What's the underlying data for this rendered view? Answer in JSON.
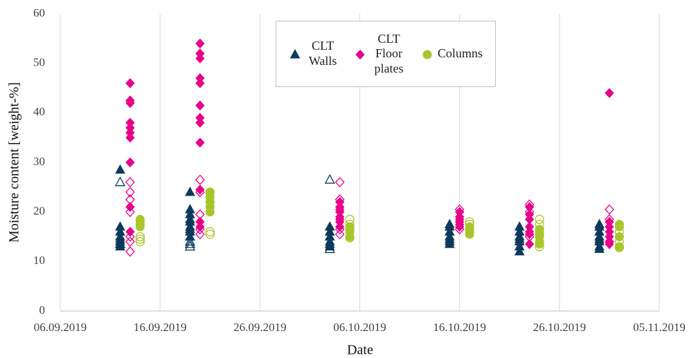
{
  "chart_data": {
    "type": "scatter",
    "x_label": "Date",
    "y_label": "Moisture content [weight-%]",
    "xlim": [
      "06.09.2019",
      "05.11.2019"
    ],
    "xticks": [
      "06.09.2019",
      "16.09.2019",
      "26.09.2019",
      "06.10.2019",
      "16.10.2019",
      "26.10.2019",
      "05.11.2019"
    ],
    "ylim": [
      0,
      60
    ],
    "yticks": [
      0,
      10,
      20,
      30,
      40,
      50,
      60
    ],
    "grid": "x",
    "legend": "top",
    "series": [
      {
        "name": "CLT Walls",
        "color": "#0d3a5c",
        "marker": "triangle",
        "x": [
          "12.09.2019",
          "12.09.2019",
          "12.09.2019",
          "12.09.2019",
          "12.09.2019",
          "12.09.2019",
          "12.09.2019",
          "12.09.2019",
          "12.09.2019",
          "12.09.2019",
          "19.09.2019",
          "19.09.2019",
          "19.09.2019",
          "19.09.2019",
          "19.09.2019",
          "19.09.2019",
          "19.09.2019",
          "19.09.2019",
          "19.09.2019",
          "19.09.2019",
          "19.09.2019",
          "19.09.2019",
          "03.10.2019",
          "03.10.2019",
          "03.10.2019",
          "03.10.2019",
          "03.10.2019",
          "03.10.2019",
          "03.10.2019",
          "03.10.2019",
          "15.10.2019",
          "15.10.2019",
          "15.10.2019",
          "15.10.2019",
          "15.10.2019",
          "15.10.2019",
          "15.10.2019",
          "22.10.2019",
          "22.10.2019",
          "22.10.2019",
          "22.10.2019",
          "22.10.2019",
          "22.10.2019",
          "22.10.2019",
          "30.10.2019",
          "30.10.2019",
          "30.10.2019",
          "30.10.2019",
          "30.10.2019",
          "30.10.2019",
          "30.10.2019",
          "30.10.2019"
        ],
        "values": [
          28.5,
          17,
          16,
          15,
          14.5,
          14,
          13.5,
          13,
          26,
          13.5,
          24,
          20.5,
          19.5,
          18.5,
          18,
          17,
          16.5,
          16,
          15,
          14,
          13.5,
          13,
          17,
          16,
          15,
          14,
          13.5,
          13,
          26.5,
          12.5,
          17.5,
          17,
          16,
          15,
          14.5,
          14,
          13.5,
          17,
          16,
          15,
          14.5,
          14,
          13,
          12,
          17.5,
          17,
          16,
          15,
          14.5,
          14,
          13,
          12.5
        ],
        "filled": [
          true,
          true,
          true,
          true,
          true,
          true,
          true,
          true,
          false,
          false,
          true,
          true,
          true,
          true,
          true,
          true,
          true,
          true,
          true,
          false,
          false,
          false,
          true,
          true,
          true,
          true,
          true,
          true,
          false,
          false,
          true,
          true,
          true,
          true,
          true,
          true,
          true,
          true,
          true,
          true,
          true,
          true,
          true,
          true,
          true,
          true,
          true,
          true,
          true,
          true,
          true,
          true
        ]
      },
      {
        "name": "CLT Floor plates",
        "color": "#e6008a",
        "marker": "diamond",
        "x": [
          "13.09.2019",
          "13.09.2019",
          "13.09.2019",
          "13.09.2019",
          "13.09.2019",
          "13.09.2019",
          "13.09.2019",
          "13.09.2019",
          "13.09.2019",
          "13.09.2019",
          "13.09.2019",
          "13.09.2019",
          "13.09.2019",
          "13.09.2019",
          "13.09.2019",
          "13.09.2019",
          "13.09.2019",
          "20.09.2019",
          "20.09.2019",
          "20.09.2019",
          "20.09.2019",
          "20.09.2019",
          "20.09.2019",
          "20.09.2019",
          "20.09.2019",
          "20.09.2019",
          "20.09.2019",
          "20.09.2019",
          "20.09.2019",
          "20.09.2019",
          "20.09.2019",
          "20.09.2019",
          "20.09.2019",
          "20.09.2019",
          "04.10.2019",
          "04.10.2019",
          "04.10.2019",
          "04.10.2019",
          "04.10.2019",
          "04.10.2019",
          "04.10.2019",
          "04.10.2019",
          "04.10.2019",
          "04.10.2019",
          "04.10.2019",
          "04.10.2019",
          "16.10.2019",
          "16.10.2019",
          "16.10.2019",
          "16.10.2019",
          "16.10.2019",
          "16.10.2019",
          "16.10.2019",
          "16.10.2019",
          "23.10.2019",
          "23.10.2019",
          "23.10.2019",
          "23.10.2019",
          "23.10.2019",
          "23.10.2019",
          "23.10.2019",
          "23.10.2019",
          "23.10.2019",
          "23.10.2019",
          "31.10.2019",
          "31.10.2019",
          "31.10.2019",
          "31.10.2019",
          "31.10.2019",
          "31.10.2019",
          "31.10.2019",
          "31.10.2019",
          "31.10.2019",
          "31.10.2019"
        ],
        "values": [
          46,
          42.5,
          42,
          38,
          37,
          36,
          35,
          30,
          21,
          16,
          26,
          24,
          22.5,
          20,
          15,
          14,
          12,
          54,
          52,
          51,
          47,
          46,
          41.5,
          39,
          38,
          34,
          24.5,
          18,
          17,
          26.5,
          24,
          19.5,
          16.5,
          15.5,
          22,
          21,
          20.5,
          20,
          19,
          18.5,
          18,
          17,
          26,
          22.5,
          16.5,
          15.5,
          20,
          19,
          18.5,
          18,
          17.5,
          17,
          20.5,
          16.5,
          21,
          19.5,
          18.5,
          17,
          16,
          15.5,
          13.5,
          21.5,
          20,
          15,
          44,
          18,
          17,
          16,
          15,
          14,
          13.5,
          20.5,
          18.5,
          14
        ],
        "filled": [
          true,
          true,
          true,
          true,
          true,
          true,
          true,
          true,
          true,
          true,
          false,
          false,
          false,
          false,
          false,
          false,
          false,
          true,
          true,
          true,
          true,
          true,
          true,
          true,
          true,
          true,
          true,
          true,
          true,
          false,
          false,
          false,
          false,
          false,
          true,
          true,
          true,
          true,
          true,
          true,
          true,
          true,
          false,
          false,
          false,
          false,
          true,
          true,
          true,
          true,
          true,
          true,
          false,
          false,
          true,
          true,
          true,
          true,
          true,
          true,
          true,
          false,
          false,
          false,
          true,
          true,
          true,
          true,
          true,
          true,
          true,
          false,
          false,
          false
        ]
      },
      {
        "name": "Columns",
        "color": "#a8c62c",
        "marker": "circle",
        "x": [
          "14.09.2019",
          "14.09.2019",
          "14.09.2019",
          "14.09.2019",
          "14.09.2019",
          "14.09.2019",
          "14.09.2019",
          "21.09.2019",
          "21.09.2019",
          "21.09.2019",
          "21.09.2019",
          "21.09.2019",
          "21.09.2019",
          "21.09.2019",
          "21.09.2019",
          "05.10.2019",
          "05.10.2019",
          "05.10.2019",
          "05.10.2019",
          "05.10.2019",
          "05.10.2019",
          "05.10.2019",
          "17.10.2019",
          "17.10.2019",
          "17.10.2019",
          "17.10.2019",
          "17.10.2019",
          "17.10.2019",
          "24.10.2019",
          "24.10.2019",
          "24.10.2019",
          "24.10.2019",
          "24.10.2019",
          "24.10.2019",
          "24.10.2019",
          "24.10.2019",
          "24.10.2019",
          "01.11.2019",
          "01.11.2019",
          "01.11.2019",
          "01.11.2019",
          "01.11.2019",
          "01.11.2019",
          "01.11.2019"
        ],
        "values": [
          18.5,
          18,
          17.5,
          17,
          15,
          14.5,
          14,
          24,
          23,
          22,
          21,
          20,
          24,
          16,
          15.5,
          17,
          16.5,
          16,
          15,
          18.5,
          17.5,
          14.8,
          17,
          16.5,
          16,
          15.5,
          18,
          17.5,
          16.5,
          16,
          15,
          14,
          13.5,
          18.5,
          17.5,
          15.5,
          13,
          17.5,
          17,
          15,
          13,
          16,
          14,
          12.8
        ],
        "filled": [
          true,
          true,
          true,
          true,
          false,
          false,
          false,
          true,
          true,
          true,
          true,
          true,
          false,
          false,
          false,
          true,
          true,
          true,
          true,
          false,
          false,
          false,
          true,
          true,
          true,
          true,
          false,
          false,
          true,
          true,
          true,
          true,
          true,
          false,
          false,
          false,
          false,
          true,
          true,
          true,
          true,
          false,
          false,
          false
        ]
      }
    ]
  }
}
